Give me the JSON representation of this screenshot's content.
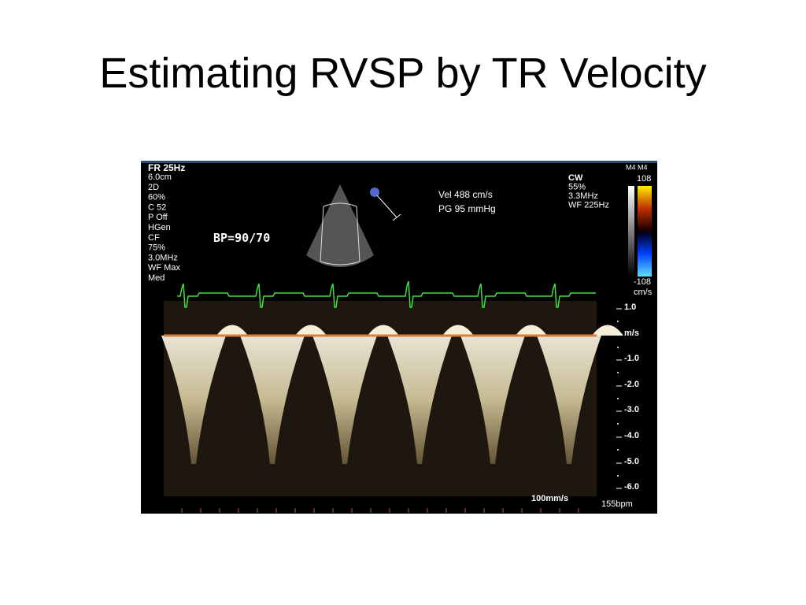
{
  "title": "Estimating RVSP by TR Velocity",
  "ultrasound": {
    "left_panel": [
      "FR 25Hz",
      "6.0cm",
      "2D",
      "60%",
      "C 52",
      "P Off",
      "HGen",
      "CF",
      "75%",
      "3.0MHz",
      "WF Max",
      "Med"
    ],
    "bp": "BP=90/70",
    "measurements": [
      "Vel  488 cm/s",
      "PG  95 mmHg"
    ],
    "right_panel": [
      "CW",
      "55%",
      "3.3MHz",
      "WF 225Hz"
    ],
    "color_bar": {
      "label": "M4 M4",
      "top": "108",
      "bottom": "-108",
      "unit": "cm/s"
    },
    "scale": [
      "1.0",
      "m/s",
      "-1.0",
      "-2.0",
      "-3.0",
      "-4.0",
      "-5.0",
      "-6.0"
    ],
    "sweep": "100mm/s",
    "heart_rate": "155bpm"
  }
}
